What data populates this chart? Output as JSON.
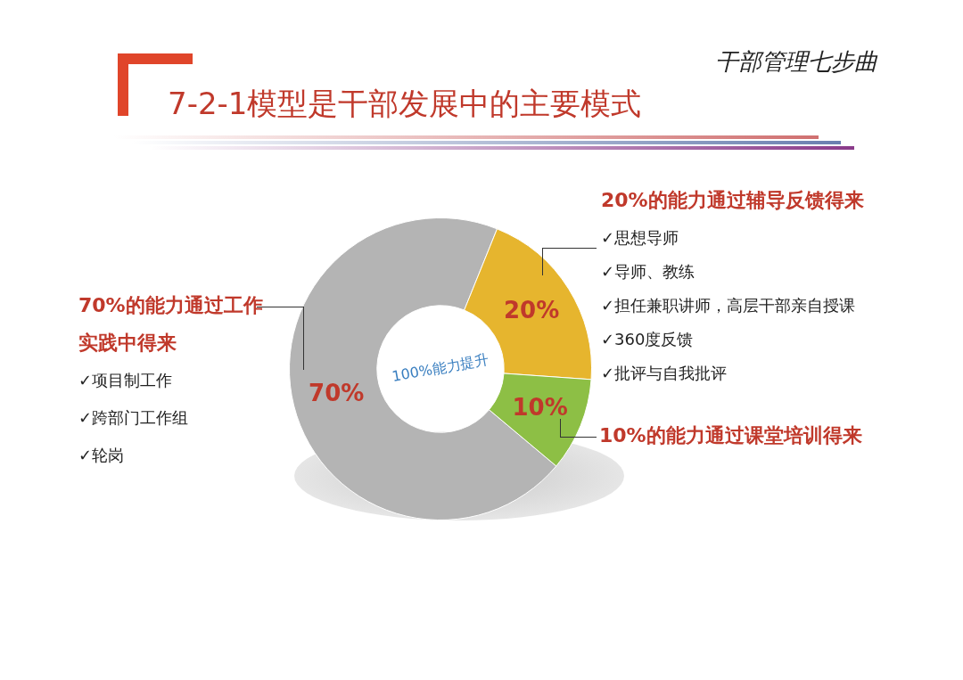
{
  "chart_data": {
    "type": "donut",
    "title": "7-2-1模型是干部发展中的主要模式",
    "subtitle": "干部管理七步曲",
    "categories": [
      "70%的能力通过工作实践中得来",
      "20%的能力通过辅导反馈得来",
      "10%的能力通过课堂培训得来"
    ],
    "values": [
      70,
      20,
      10
    ],
    "colors": [
      "#b4b4b4",
      "#e6b52e",
      "#8dbf45"
    ],
    "value_labels": [
      "70%",
      "20%",
      "10%"
    ],
    "annotations": [
      "100%能力提升",
      "✓项目制工作",
      "✓跨部门工作组",
      "✓轮岗",
      "✓思想导师",
      "✓导师、教练",
      "✓担任兼职讲师，高层干部亲自授课",
      "✓360度反馈",
      "✓批评与自我批评"
    ],
    "legend": false
  }
}
